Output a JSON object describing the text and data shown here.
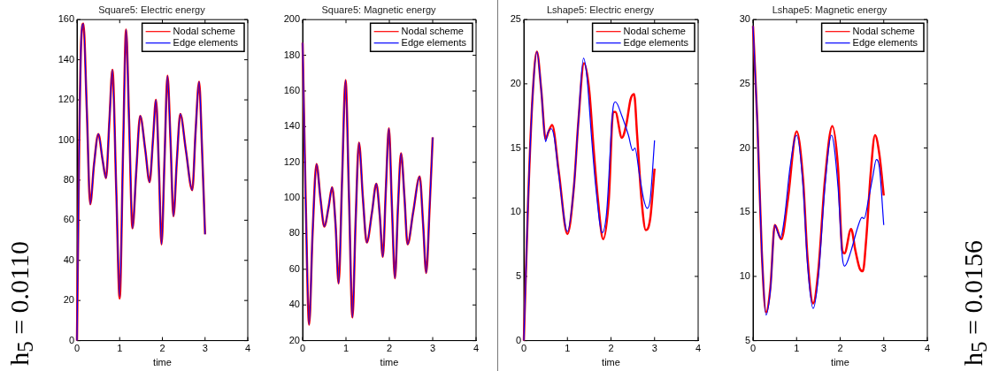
{
  "chart_data": [
    {
      "type": "line",
      "title": "Square5: Electric energy",
      "xlabel": "time",
      "xlim": [
        0,
        4
      ],
      "xticks": [
        0,
        1,
        2,
        3,
        4
      ],
      "ylim": [
        0,
        160
      ],
      "yticks": [
        0,
        20,
        40,
        60,
        80,
        100,
        120,
        140,
        160
      ],
      "grid": false,
      "legend": "top right",
      "marker": "none",
      "line_style": "solid",
      "annotations": [
        "h$_{5}$ = 0.0110"
      ],
      "series": [
        {
          "name": "Nodal scheme",
          "color": "#ff0000",
          "x": [
            0,
            0.05,
            0.1,
            0.15,
            0.23,
            0.31,
            0.4,
            0.5,
            0.6,
            0.68,
            0.76,
            0.83,
            0.92,
            1.0,
            1.08,
            1.15,
            1.22,
            1.3,
            1.39,
            1.48,
            1.6,
            1.7,
            1.78,
            1.85,
            1.92,
            1.98,
            2.05,
            2.12,
            2.19,
            2.26,
            2.34,
            2.42,
            2.55,
            2.7,
            2.78,
            2.86,
            2.93,
            3.0
          ],
          "values": [
            0,
            95,
            150,
            158,
            115,
            68,
            88,
            103,
            90,
            81,
            110,
            135,
            75,
            21,
            95,
            155,
            110,
            56,
            85,
            112,
            95,
            79,
            100,
            120,
            85,
            48,
            90,
            132,
            100,
            62,
            90,
            113,
            95,
            75,
            105,
            129,
            95,
            53
          ]
        },
        {
          "name": "Edge elements",
          "color": "#0000ff",
          "x": [
            0,
            0.05,
            0.1,
            0.15,
            0.23,
            0.31,
            0.4,
            0.5,
            0.6,
            0.68,
            0.76,
            0.83,
            0.92,
            1.0,
            1.08,
            1.15,
            1.22,
            1.3,
            1.39,
            1.48,
            1.6,
            1.7,
            1.78,
            1.85,
            1.92,
            1.98,
            2.05,
            2.12,
            2.19,
            2.26,
            2.34,
            2.42,
            2.55,
            2.7,
            2.78,
            2.86,
            2.93,
            3.0
          ],
          "values": [
            0,
            95,
            150,
            158,
            115,
            68,
            88,
            103,
            90,
            81,
            110,
            135,
            75,
            22,
            95,
            155,
            110,
            56,
            85,
            112,
            95,
            79,
            100,
            120,
            85,
            48,
            90,
            132,
            100,
            62,
            90,
            113,
            95,
            75,
            105,
            129,
            95,
            53
          ]
        }
      ]
    },
    {
      "type": "line",
      "title": "Square5: Magnetic energy",
      "xlabel": "time",
      "xlim": [
        0,
        4
      ],
      "xticks": [
        0,
        1,
        2,
        3,
        4
      ],
      "ylim": [
        20,
        200
      ],
      "yticks": [
        20,
        40,
        60,
        80,
        100,
        120,
        140,
        160,
        180,
        200
      ],
      "grid": false,
      "legend": "top right",
      "marker": "none",
      "line_style": "solid",
      "series": [
        {
          "name": "Nodal scheme",
          "color": "#ff0000",
          "x": [
            0,
            0.07,
            0.15,
            0.23,
            0.32,
            0.41,
            0.5,
            0.6,
            0.68,
            0.76,
            0.83,
            0.91,
            0.99,
            1.07,
            1.15,
            1.22,
            1.3,
            1.39,
            1.48,
            1.6,
            1.7,
            1.78,
            1.85,
            1.92,
            1.99,
            2.06,
            2.13,
            2.2,
            2.27,
            2.35,
            2.42,
            2.55,
            2.7,
            2.78,
            2.85,
            2.93,
            3.0
          ],
          "values": [
            187,
            100,
            29,
            80,
            119,
            100,
            84,
            95,
            106,
            85,
            52,
            110,
            166,
            100,
            33,
            85,
            131,
            100,
            75,
            92,
            108,
            90,
            67,
            105,
            139,
            95,
            55,
            95,
            125,
            100,
            74,
            92,
            112,
            85,
            58,
            95,
            134
          ]
        },
        {
          "name": "Edge elements",
          "color": "#0000ff",
          "x": [
            0,
            0.07,
            0.15,
            0.23,
            0.32,
            0.41,
            0.5,
            0.6,
            0.68,
            0.76,
            0.83,
            0.91,
            0.99,
            1.07,
            1.15,
            1.22,
            1.3,
            1.39,
            1.48,
            1.6,
            1.7,
            1.78,
            1.85,
            1.92,
            1.99,
            2.06,
            2.13,
            2.2,
            2.27,
            2.35,
            2.42,
            2.55,
            2.7,
            2.78,
            2.85,
            2.93,
            3.0
          ],
          "values": [
            187,
            100,
            29,
            80,
            119,
            100,
            84,
            95,
            106,
            85,
            52,
            110,
            166,
            100,
            33,
            85,
            131,
            100,
            75,
            92,
            108,
            90,
            67,
            105,
            139,
            95,
            55,
            95,
            125,
            100,
            74,
            92,
            112,
            85,
            58,
            95,
            134
          ]
        }
      ]
    },
    {
      "type": "line",
      "title": "Lshape5: Electric energy",
      "xlabel": "time",
      "xlim": [
        0,
        4
      ],
      "xticks": [
        0,
        1,
        2,
        3,
        4
      ],
      "ylim": [
        0,
        25
      ],
      "yticks": [
        0,
        5,
        10,
        15,
        20,
        25
      ],
      "grid": false,
      "legend": "top right",
      "marker": "none",
      "line_style": "solid",
      "series": [
        {
          "name": "Nodal scheme",
          "color": "#ff0000",
          "x": [
            0,
            0.1,
            0.2,
            0.3,
            0.4,
            0.5,
            0.57,
            0.65,
            0.8,
            1.0,
            1.15,
            1.25,
            1.38,
            1.5,
            1.6,
            1.7,
            1.82,
            1.95,
            2.05,
            2.1,
            2.25,
            2.35,
            2.45,
            2.53,
            2.6,
            2.7,
            2.8,
            2.9,
            3.0
          ],
          "values": [
            0,
            11,
            19,
            22.5,
            19.5,
            15.7,
            16.3,
            16.8,
            13.2,
            8.3,
            12,
            17,
            21.6,
            19.5,
            15,
            11,
            7.9,
            11,
            17.8,
            17.8,
            15.8,
            16.8,
            18.8,
            19.2,
            16,
            11,
            8.6,
            9.5,
            13.4
          ]
        },
        {
          "name": "Edge elements",
          "color": "#0000ff",
          "x": [
            0,
            0.1,
            0.2,
            0.3,
            0.4,
            0.5,
            0.55,
            0.63,
            0.7,
            0.8,
            1.0,
            1.15,
            1.25,
            1.37,
            1.45,
            1.55,
            1.65,
            1.8,
            1.9,
            2.05,
            2.1,
            2.25,
            2.4,
            2.5,
            2.55,
            2.65,
            2.75,
            2.83,
            2.9,
            3.0
          ],
          "values": [
            0,
            11,
            19,
            22.5,
            19.5,
            15.5,
            16.2,
            16.5,
            15.8,
            13,
            8.5,
            12,
            17,
            22,
            20.5,
            16,
            12,
            8.4,
            10,
            18.2,
            18.6,
            17.5,
            16,
            14.8,
            15,
            13,
            11,
            10.3,
            11,
            15.6
          ]
        }
      ]
    },
    {
      "type": "line",
      "title": "Lshape5: Magnetic energy",
      "xlabel": "time",
      "xlim": [
        0,
        4
      ],
      "xticks": [
        0,
        1,
        2,
        3,
        4
      ],
      "ylim": [
        5,
        30
      ],
      "yticks": [
        5,
        10,
        15,
        20,
        25,
        30
      ],
      "grid": false,
      "legend": "top right",
      "marker": "none",
      "line_style": "solid",
      "annotations": [
        "h$_{5}$ = 0.0156"
      ],
      "series": [
        {
          "name": "Nodal scheme",
          "color": "#ff0000",
          "x": [
            0,
            0.1,
            0.2,
            0.3,
            0.4,
            0.5,
            0.65,
            0.8,
            1.0,
            1.15,
            1.25,
            1.38,
            1.5,
            1.65,
            1.82,
            1.95,
            2.05,
            2.1,
            2.25,
            2.35,
            2.45,
            2.52,
            2.6,
            2.7,
            2.8,
            2.9,
            3.0
          ],
          "values": [
            29.5,
            22,
            12,
            7.2,
            9.2,
            14,
            12.9,
            16,
            21.3,
            17.5,
            11.5,
            7.9,
            10.5,
            17.5,
            21.7,
            18.5,
            12,
            11.8,
            13.7,
            12,
            10.6,
            10.4,
            13,
            18,
            21,
            19.5,
            16.3
          ]
        },
        {
          "name": "Edge elements",
          "color": "#0000ff",
          "x": [
            0,
            0.1,
            0.2,
            0.3,
            0.4,
            0.5,
            0.57,
            0.63,
            0.72,
            0.85,
            1.0,
            1.15,
            1.25,
            1.38,
            1.5,
            1.65,
            1.8,
            1.95,
            2.05,
            2.1,
            2.25,
            2.4,
            2.5,
            2.55,
            2.65,
            2.75,
            2.83,
            2.9,
            3.0
          ],
          "values": [
            29.5,
            22,
            12,
            7,
            9,
            14,
            13.4,
            13,
            14.5,
            18.5,
            21,
            17,
            11,
            7.5,
            10,
            17,
            21,
            17,
            11.5,
            10.8,
            12,
            13.8,
            14.6,
            14.5,
            16,
            17.8,
            19.1,
            18.5,
            14
          ]
        }
      ]
    }
  ]
}
